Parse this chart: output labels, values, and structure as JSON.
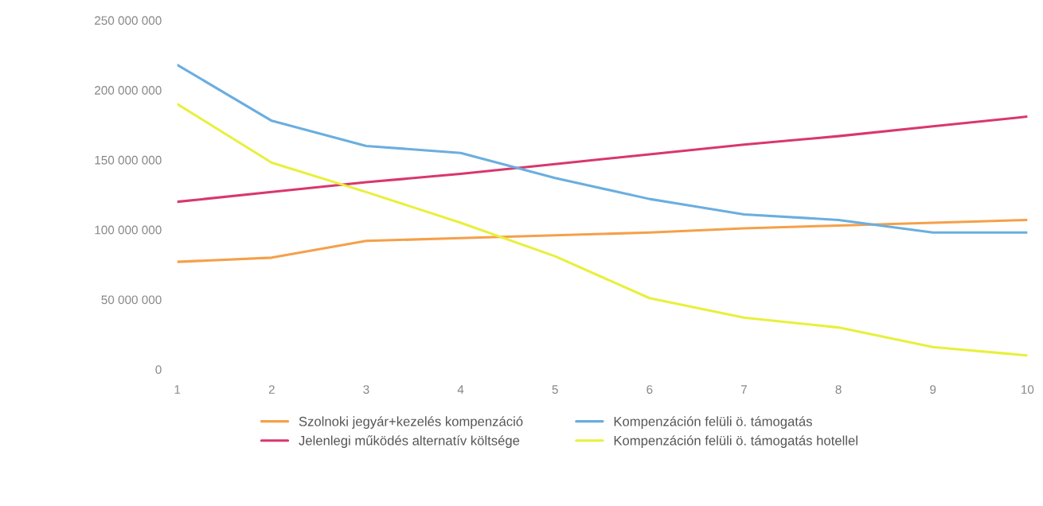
{
  "chart_data": {
    "type": "line",
    "x": [
      1,
      2,
      3,
      4,
      5,
      6,
      7,
      8,
      9,
      10
    ],
    "xlim": [
      1,
      10
    ],
    "xticks": [
      1,
      2,
      3,
      4,
      5,
      6,
      7,
      8,
      9,
      10
    ],
    "ylim": [
      0,
      250000000
    ],
    "yticks": [
      {
        "value": 0,
        "label": "0"
      },
      {
        "value": 50000000,
        "label": "50 000 000"
      },
      {
        "value": 100000000,
        "label": "100 000 000"
      },
      {
        "value": 150000000,
        "label": "150 000 000"
      },
      {
        "value": 200000000,
        "label": "200 000 000"
      },
      {
        "value": 250000000,
        "label": "250 000 000"
      }
    ],
    "grid": false,
    "legend": "bottom",
    "marker": "none",
    "line_style": "solid",
    "series": [
      {
        "name": "Szolnoki jegyár+kezelés kompenzáció",
        "color": "#f5a04a",
        "values": [
          77000000,
          80000000,
          92000000,
          94000000,
          96000000,
          98000000,
          101000000,
          103000000,
          105000000,
          107000000
        ]
      },
      {
        "name": "Jelenlegi működés alternatív költsége",
        "color": "#d9376e",
        "values": [
          120000000,
          127000000,
          134000000,
          140000000,
          147000000,
          154000000,
          161000000,
          167000000,
          174000000,
          181000000
        ]
      },
      {
        "name": "Kompenzáción felüli ö. támogatás",
        "color": "#6aaee0",
        "values": [
          218000000,
          178000000,
          160000000,
          155000000,
          137000000,
          122000000,
          111000000,
          107000000,
          98000000,
          98000000
        ]
      },
      {
        "name": "Kompenzáción felüli ö. támogatás hotellel",
        "color": "#e8f03c",
        "values": [
          190000000,
          148000000,
          127000000,
          105000000,
          81000000,
          51000000,
          37000000,
          30000000,
          16000000,
          10000000
        ]
      }
    ]
  }
}
